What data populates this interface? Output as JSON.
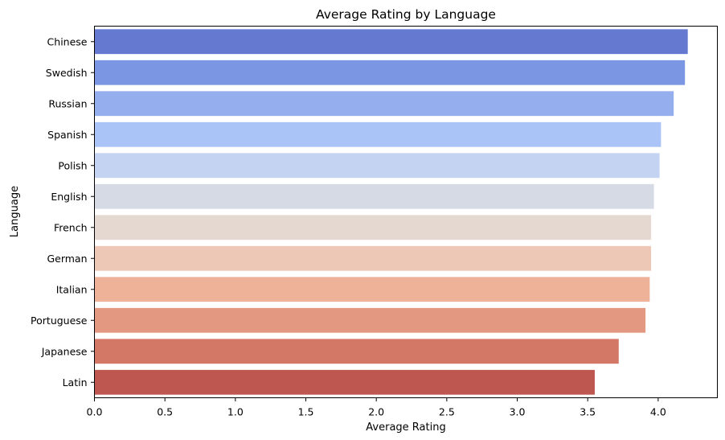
{
  "chart_data": {
    "type": "bar",
    "orientation": "horizontal",
    "title": "Average Rating by Language",
    "xlabel": "Average Rating",
    "ylabel": "Language",
    "xlim": [
      0,
      4.42
    ],
    "xticks": [
      "0.0",
      "0.5",
      "1.0",
      "1.5",
      "2.0",
      "2.5",
      "3.0",
      "3.5",
      "4.0"
    ],
    "grid": false,
    "legend": "none",
    "categories": [
      "Chinese",
      "Swedish",
      "Russian",
      "Spanish",
      "Polish",
      "English",
      "French",
      "German",
      "Italian",
      "Portuguese",
      "Japanese",
      "Latin"
    ],
    "values": [
      4.21,
      4.19,
      4.11,
      4.02,
      4.01,
      3.97,
      3.95,
      3.95,
      3.94,
      3.91,
      3.72,
      3.55
    ],
    "colors": [
      "#6479cf",
      "#7b96e2",
      "#94aeee",
      "#aac4f8",
      "#c3d3f1",
      "#d5dae5",
      "#e5d8d1",
      "#edc8b6",
      "#eeb299",
      "#e39881",
      "#d37867",
      "#be5750"
    ]
  }
}
